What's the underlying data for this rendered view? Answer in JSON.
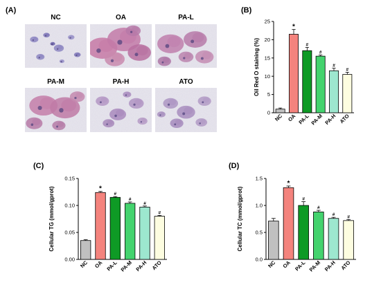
{
  "panels": {
    "A": {
      "label": "(A)",
      "images": [
        {
          "label": "NC"
        },
        {
          "label": "OA"
        },
        {
          "label": "PA-L"
        },
        {
          "label": "PA-M"
        },
        {
          "label": "PA-H"
        },
        {
          "label": "ATO"
        }
      ]
    }
  },
  "colors": {
    "NC": "#c0c0c0",
    "OA": "#f4837d",
    "PA-L": "#0e9a25",
    "PA-M": "#44d36e",
    "PA-H": "#9de7cf",
    "ATO": "#fdfde0",
    "stroke": "#000000"
  },
  "chart_data": [
    {
      "panel": "B",
      "panel_label": "(B)",
      "type": "bar",
      "categories": [
        "NC",
        "OA",
        "PA-L",
        "PA-M",
        "PA-H",
        "ATO"
      ],
      "values": [
        1.0,
        21.5,
        17.0,
        15.5,
        11.5,
        10.5
      ],
      "errors": [
        0.3,
        1.3,
        0.9,
        0.3,
        0.7,
        0.6
      ],
      "marks": [
        "",
        "*",
        "#",
        "#",
        "#",
        "#"
      ],
      "title": "",
      "xlabel": "",
      "ylabel": "Oil Red O staining (%)",
      "ylim": [
        0,
        25
      ],
      "yticks": [
        0,
        5,
        10,
        15,
        20,
        25
      ],
      "grid": false
    },
    {
      "panel": "C",
      "panel_label": "(C)",
      "type": "bar",
      "categories": [
        "NC",
        "OA",
        "PA-L",
        "PA-M",
        "PA-H",
        "ATO"
      ],
      "values": [
        0.035,
        0.124,
        0.115,
        0.104,
        0.097,
        0.08
      ],
      "errors": [
        0.0015,
        0.002,
        0.0015,
        0.0025,
        0.002,
        0.0015
      ],
      "marks": [
        "",
        "*",
        "#",
        "#",
        "#",
        "#"
      ],
      "title": "",
      "xlabel": "",
      "ylabel": "Cellular TG (mmol/gprot)",
      "ylim": [
        0,
        0.15
      ],
      "yticks": [
        0.0,
        0.05,
        0.1,
        0.15
      ],
      "ytick_labels": [
        "0.00",
        "0.05",
        "0.10",
        "0.15"
      ],
      "grid": false
    },
    {
      "panel": "D",
      "panel_label": "(D)",
      "type": "bar",
      "categories": [
        "NC",
        "OA",
        "PA-L",
        "PA-M",
        "PA-H",
        "ATO"
      ],
      "values": [
        0.71,
        1.33,
        1.0,
        0.88,
        0.76,
        0.72
      ],
      "errors": [
        0.05,
        0.03,
        0.07,
        0.03,
        0.02,
        0.02
      ],
      "marks": [
        "",
        "*",
        "#",
        "#",
        "#",
        "#"
      ],
      "title": "",
      "xlabel": "",
      "ylabel": "Cellular TC (mmol/gprot)",
      "ylim": [
        0,
        1.5
      ],
      "yticks": [
        0.0,
        0.5,
        1.0,
        1.5
      ],
      "ytick_labels": [
        "0.0",
        "0.5",
        "1.0",
        "1.5"
      ],
      "grid": false
    }
  ]
}
